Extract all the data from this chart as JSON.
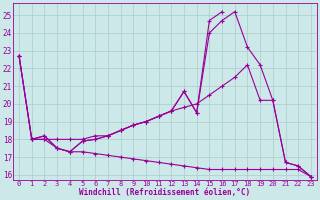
{
  "bg_color": "#cce8e8",
  "grid_color": "#aacccc",
  "line_color": "#990099",
  "xlabel": "Windchill (Refroidissement éolien,°C)",
  "xlim": [
    -0.5,
    23.5
  ],
  "ylim": [
    15.7,
    25.7
  ],
  "yticks": [
    16,
    17,
    18,
    19,
    20,
    21,
    22,
    23,
    24,
    25
  ],
  "xticks": [
    0,
    1,
    2,
    3,
    4,
    5,
    6,
    7,
    8,
    9,
    10,
    11,
    12,
    13,
    14,
    15,
    16,
    17,
    18,
    19,
    20,
    21,
    22,
    23
  ],
  "line1_x": [
    0,
    1,
    2,
    3,
    4,
    5,
    6,
    7,
    8,
    9,
    10,
    11,
    12,
    13,
    14,
    15,
    16,
    17,
    18,
    19,
    20,
    21,
    22,
    23
  ],
  "line1_y": [
    22.7,
    18.0,
    18.0,
    18.0,
    18.0,
    18.0,
    18.2,
    18.2,
    18.5,
    18.8,
    19.0,
    19.3,
    19.6,
    19.8,
    20.0,
    20.5,
    21.0,
    21.5,
    22.2,
    20.2,
    20.2,
    16.7,
    16.5,
    15.9
  ],
  "line2_x": [
    0,
    1,
    2,
    3,
    4,
    5,
    6,
    7,
    8,
    9,
    10,
    11,
    12,
    13,
    14,
    15,
    16,
    17,
    18,
    19,
    20,
    21,
    22,
    23
  ],
  "line2_y": [
    22.7,
    18.0,
    18.2,
    17.5,
    17.3,
    17.9,
    18.0,
    18.2,
    18.5,
    18.8,
    19.0,
    19.3,
    19.6,
    20.7,
    19.5,
    24.0,
    24.7,
    25.2,
    23.2,
    22.2,
    20.2,
    16.7,
    16.5,
    15.9
  ],
  "line3_x": [
    0,
    1,
    2,
    3,
    4,
    5,
    6,
    7,
    8,
    9,
    10,
    11,
    12,
    13,
    14,
    15,
    16
  ],
  "line3_y": [
    22.7,
    18.0,
    18.2,
    17.5,
    17.3,
    17.9,
    18.0,
    18.2,
    18.5,
    18.8,
    19.0,
    19.3,
    19.6,
    20.7,
    19.5,
    24.7,
    25.2
  ],
  "line4_x": [
    1,
    2,
    3,
    4,
    5,
    6,
    7,
    8,
    9,
    10,
    11,
    12,
    13,
    14,
    15,
    16,
    17,
    18,
    19,
    20,
    21,
    22,
    23
  ],
  "line4_y": [
    18.0,
    18.0,
    17.5,
    17.3,
    17.3,
    17.2,
    17.1,
    17.0,
    16.9,
    16.8,
    16.7,
    16.6,
    16.5,
    16.4,
    16.3,
    16.3,
    16.3,
    16.3,
    16.3,
    16.3,
    16.3,
    16.3,
    15.9
  ]
}
